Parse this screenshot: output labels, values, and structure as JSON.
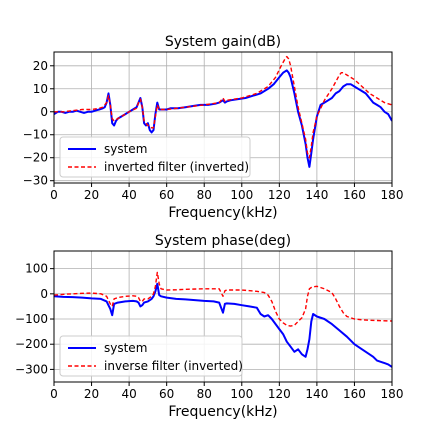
{
  "chart_data": [
    {
      "type": "line",
      "title": "System gain(dB)",
      "xlabel": "Frequency(kHz)",
      "ylabel": "",
      "xlim": [
        0,
        180
      ],
      "ylim": [
        -31,
        26
      ],
      "xticks": [
        0,
        20,
        40,
        60,
        80,
        100,
        120,
        140,
        160,
        180
      ],
      "yticks": [
        -30,
        -20,
        -10,
        0,
        10,
        20
      ],
      "grid": true,
      "legend": "lower-left",
      "series": [
        {
          "name": "system",
          "color": "#0000ff",
          "style": "solid",
          "x": [
            0,
            2,
            4,
            6,
            8,
            10,
            12,
            14,
            16,
            18,
            20,
            22,
            24,
            26,
            27,
            28,
            29,
            30,
            31,
            32,
            33,
            34,
            36,
            38,
            40,
            42,
            44,
            45,
            46,
            47,
            48,
            49,
            50,
            51,
            52,
            53,
            54,
            55,
            56,
            58,
            60,
            62,
            66,
            70,
            74,
            78,
            82,
            86,
            88,
            89,
            90,
            91,
            92,
            94,
            98,
            102,
            106,
            110,
            114,
            117,
            120,
            122,
            124,
            125,
            126,
            128,
            130,
            132,
            134,
            135,
            136,
            137,
            138,
            140,
            142,
            144,
            146,
            148,
            150,
            152,
            154,
            156,
            158,
            160,
            162,
            164,
            166,
            168,
            170,
            172,
            174,
            176,
            178,
            180
          ],
          "y": [
            -1,
            0,
            0,
            -0.5,
            0,
            0,
            0.5,
            0,
            -0.5,
            0,
            0,
            0.5,
            1,
            1.5,
            2,
            4,
            8,
            3,
            -5,
            -6,
            -4,
            -3,
            -2,
            -1,
            0,
            1,
            2,
            4,
            6,
            2,
            -5,
            -6,
            -5,
            -8,
            -9,
            -8,
            -1,
            4,
            1,
            1,
            1,
            1.5,
            1.5,
            2,
            2.5,
            3,
            3,
            3.5,
            4,
            4.5,
            5,
            4,
            4.5,
            5,
            5.5,
            6,
            7,
            8,
            10,
            12,
            15,
            17,
            18,
            17,
            15,
            8,
            0,
            -6,
            -14,
            -20,
            -24,
            -18,
            -12,
            -2,
            3,
            4,
            5,
            6,
            8,
            9,
            11,
            12,
            12,
            11,
            10,
            9,
            8,
            6,
            4,
            3,
            2,
            0,
            -1,
            -4
          ]
        },
        {
          "name": "inverted filter (inverted)",
          "color": "#ff0000",
          "style": "dashed",
          "x": [
            0,
            5,
            10,
            15,
            20,
            24,
            26,
            28,
            29,
            30,
            31,
            32,
            34,
            36,
            40,
            44,
            45,
            46,
            47,
            48,
            50,
            52,
            53,
            54,
            55,
            56,
            60,
            70,
            80,
            88,
            89,
            90,
            91,
            92,
            100,
            108,
            114,
            118,
            121,
            123,
            124,
            125,
            126,
            128,
            130,
            132,
            134,
            135,
            136,
            137,
            138,
            140,
            144,
            148,
            150,
            152,
            153,
            154,
            156,
            160,
            164,
            168,
            172,
            176,
            180
          ],
          "y": [
            0,
            0,
            0.5,
            1,
            1,
            1.5,
            2,
            4,
            7,
            3,
            -3,
            -4,
            -3,
            -2,
            0,
            1.5,
            4,
            5.5,
            2,
            -4,
            -6,
            -7,
            -7,
            -2,
            3,
            1,
            1,
            2,
            3,
            4,
            5,
            6,
            4.5,
            5,
            6,
            8,
            11,
            15,
            20,
            23,
            24,
            23,
            20,
            11,
            2,
            -5,
            -12,
            -18,
            -20,
            -15,
            -9,
            -2,
            5,
            10,
            13,
            16,
            17,
            17,
            16,
            14,
            11,
            8,
            6,
            4,
            3
          ]
        }
      ]
    },
    {
      "type": "line",
      "title": "System phase(deg)",
      "xlabel": "Frequency(kHz)",
      "ylabel": "",
      "xlim": [
        0,
        180
      ],
      "ylim": [
        -350,
        170
      ],
      "xticks": [
        0,
        20,
        40,
        60,
        80,
        100,
        120,
        140,
        160,
        180
      ],
      "yticks": [
        -300,
        -200,
        -100,
        0,
        100
      ],
      "grid": true,
      "legend": "lower-left",
      "series": [
        {
          "name": "system",
          "color": "#0000ff",
          "style": "solid",
          "x": [
            0,
            5,
            10,
            15,
            20,
            25,
            28,
            30,
            31,
            32,
            34,
            38,
            42,
            44,
            45,
            46,
            47,
            48,
            50,
            52,
            53,
            54,
            55,
            56,
            57,
            60,
            65,
            70,
            75,
            80,
            85,
            88,
            89,
            90,
            91,
            92,
            96,
            100,
            104,
            108,
            110,
            112,
            114,
            116,
            118,
            120,
            122,
            124,
            126,
            128,
            130,
            132,
            134,
            135,
            136,
            137,
            138,
            140,
            144,
            148,
            152,
            156,
            160,
            164,
            168,
            170,
            172,
            174,
            176,
            178,
            180
          ],
          "y": [
            -10,
            -12,
            -13,
            -15,
            -18,
            -20,
            -30,
            -60,
            -85,
            -40,
            -35,
            -30,
            -28,
            -30,
            -35,
            -50,
            -45,
            -35,
            -30,
            -20,
            -10,
            10,
            40,
            -5,
            -10,
            -15,
            -20,
            -22,
            -25,
            -28,
            -30,
            -35,
            -55,
            -75,
            -40,
            -38,
            -40,
            -45,
            -50,
            -55,
            -80,
            -90,
            -85,
            -100,
            -120,
            -140,
            -160,
            -190,
            -210,
            -230,
            -220,
            -240,
            -250,
            -220,
            -180,
            -110,
            -80,
            -90,
            -100,
            -120,
            -145,
            -170,
            -200,
            -220,
            -240,
            -250,
            -265,
            -270,
            -275,
            -280,
            -290
          ]
        },
        {
          "name": "inverse filter (inverted)",
          "color": "#ff0000",
          "style": "dashed",
          "x": [
            0,
            5,
            10,
            15,
            20,
            25,
            28,
            30,
            31,
            32,
            34,
            38,
            42,
            44,
            45,
            46,
            47,
            48,
            50,
            52,
            53,
            54,
            55,
            56,
            57,
            60,
            65,
            70,
            80,
            88,
            89,
            90,
            91,
            92,
            100,
            108,
            112,
            114,
            116,
            118,
            120,
            122,
            124,
            126,
            128,
            130,
            132,
            134,
            135,
            136,
            137,
            138,
            140,
            144,
            148,
            150,
            152,
            154,
            156,
            160,
            164,
            168,
            172,
            176,
            180
          ],
          "y": [
            -5,
            -2,
            0,
            2,
            3,
            0,
            -10,
            -40,
            -50,
            -20,
            -15,
            -10,
            -8,
            -10,
            -15,
            -30,
            -30,
            -20,
            -20,
            -10,
            0,
            30,
            85,
            40,
            20,
            15,
            16,
            18,
            20,
            20,
            5,
            -10,
            12,
            15,
            15,
            10,
            5,
            -5,
            -30,
            -70,
            -100,
            -115,
            -125,
            -128,
            -125,
            -110,
            -95,
            -60,
            -10,
            20,
            25,
            28,
            30,
            20,
            5,
            -20,
            -50,
            -75,
            -90,
            -100,
            -103,
            -105,
            -106,
            -107,
            -108
          ]
        }
      ]
    }
  ]
}
